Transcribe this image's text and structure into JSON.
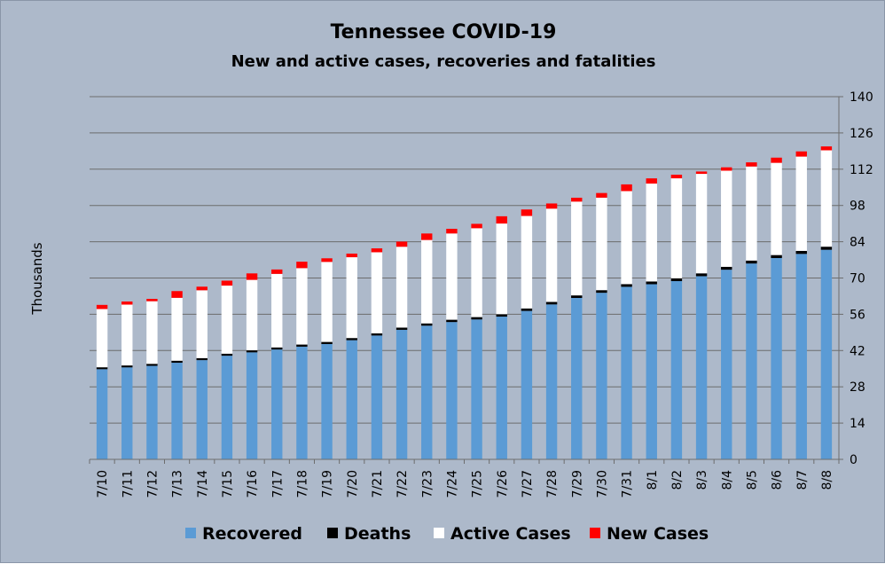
{
  "chart_data": {
    "type": "bar",
    "stacked": true,
    "title": "Tennessee COVID-19",
    "subtitle": "New and active cases, recoveries and fatalities",
    "xlabel": "",
    "ylabel": "Thousands",
    "ylim": [
      0,
      140
    ],
    "yticks": [
      0,
      14,
      28,
      42,
      56,
      70,
      84,
      98,
      112,
      126,
      140
    ],
    "y_axis_side": "right",
    "grid": true,
    "legend_position": "bottom",
    "categories": [
      "7/10",
      "7/11",
      "7/12",
      "7/13",
      "7/14",
      "7/15",
      "7/16",
      "7/17",
      "7/18",
      "7/19",
      "7/20",
      "7/21",
      "7/22",
      "7/23",
      "7/24",
      "7/25",
      "7/26",
      "7/27",
      "7/28",
      "7/29",
      "7/30",
      "7/31",
      "8/1",
      "8/2",
      "8/3",
      "8/4",
      "8/5",
      "8/6",
      "8/7",
      "8/8"
    ],
    "series": [
      {
        "name": "Recovered",
        "color": "#5b9bd5",
        "values": [
          34.8,
          35.5,
          36.1,
          37.3,
          38.3,
          40.0,
          41.3,
          42.4,
          43.5,
          44.5,
          46.0,
          47.8,
          50.0,
          51.6,
          53.0,
          54.0,
          55.1,
          57.3,
          59.8,
          62.3,
          64.3,
          66.6,
          67.6,
          68.8,
          70.7,
          73.2,
          75.6,
          77.7,
          79.3,
          80.9
        ]
      },
      {
        "name": "Deaths",
        "color": "#000000",
        "values": [
          0.72,
          0.73,
          0.74,
          0.75,
          0.76,
          0.77,
          0.78,
          0.79,
          0.8,
          0.81,
          0.82,
          0.84,
          0.86,
          0.88,
          0.89,
          0.91,
          0.93,
          0.95,
          0.97,
          0.99,
          1.01,
          1.04,
          1.06,
          1.08,
          1.1,
          1.12,
          1.14,
          1.16,
          1.17,
          1.19
        ]
      },
      {
        "name": "Active Cases",
        "color": "#ffffff",
        "values": [
          22.5,
          23.5,
          24.2,
          24.3,
          26.2,
          26.3,
          27.2,
          28.4,
          29.5,
          30.9,
          31.2,
          31.3,
          31.2,
          32.2,
          33.3,
          34.3,
          35.0,
          35.7,
          36.0,
          36.2,
          35.7,
          35.9,
          37.8,
          38.6,
          38.4,
          37.1,
          36.3,
          35.6,
          36.4,
          37.2
        ]
      },
      {
        "name": "New Cases",
        "color": "#ff0000",
        "values": [
          1.6,
          1.2,
          0.9,
          2.6,
          1.4,
          1.9,
          2.5,
          1.7,
          2.5,
          1.4,
          1.4,
          1.5,
          2.0,
          2.5,
          1.8,
          1.7,
          2.8,
          2.5,
          2.0,
          1.5,
          1.8,
          2.6,
          2.0,
          1.4,
          0.9,
          1.3,
          1.6,
          2.0,
          2.0,
          1.5
        ]
      }
    ]
  }
}
